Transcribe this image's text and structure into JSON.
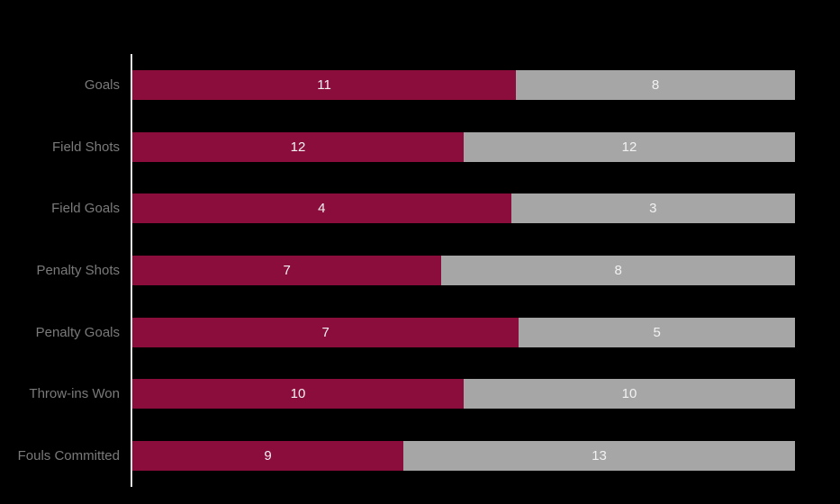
{
  "colors": {
    "background": "#000000",
    "axis_line": "#E2E2E2",
    "category_label": "#7A7A7A",
    "value_label": "#F2F2F2",
    "series_maroon": "#8B0D3C",
    "series_gray": "#A6A6A6"
  },
  "chart_data": {
    "type": "bar",
    "orientation": "horizontal",
    "stacked": true,
    "percent_stacked": true,
    "title": "",
    "xlabel": "",
    "ylabel": "",
    "legend": "none",
    "grid": false,
    "categories": [
      "Goals",
      "Field Shots",
      "Field Goals",
      "Penalty Shots",
      "Penalty Goals",
      "Throw-ins Won",
      "Fouls Committed"
    ],
    "series": [
      {
        "name": "maroon-series",
        "color": "#8B0D3C",
        "values": [
          11,
          12,
          4,
          7,
          7,
          10,
          9
        ]
      },
      {
        "name": "gray-series",
        "color": "#A6A6A6",
        "values": [
          8,
          12,
          3,
          8,
          5,
          10,
          13
        ]
      }
    ]
  }
}
